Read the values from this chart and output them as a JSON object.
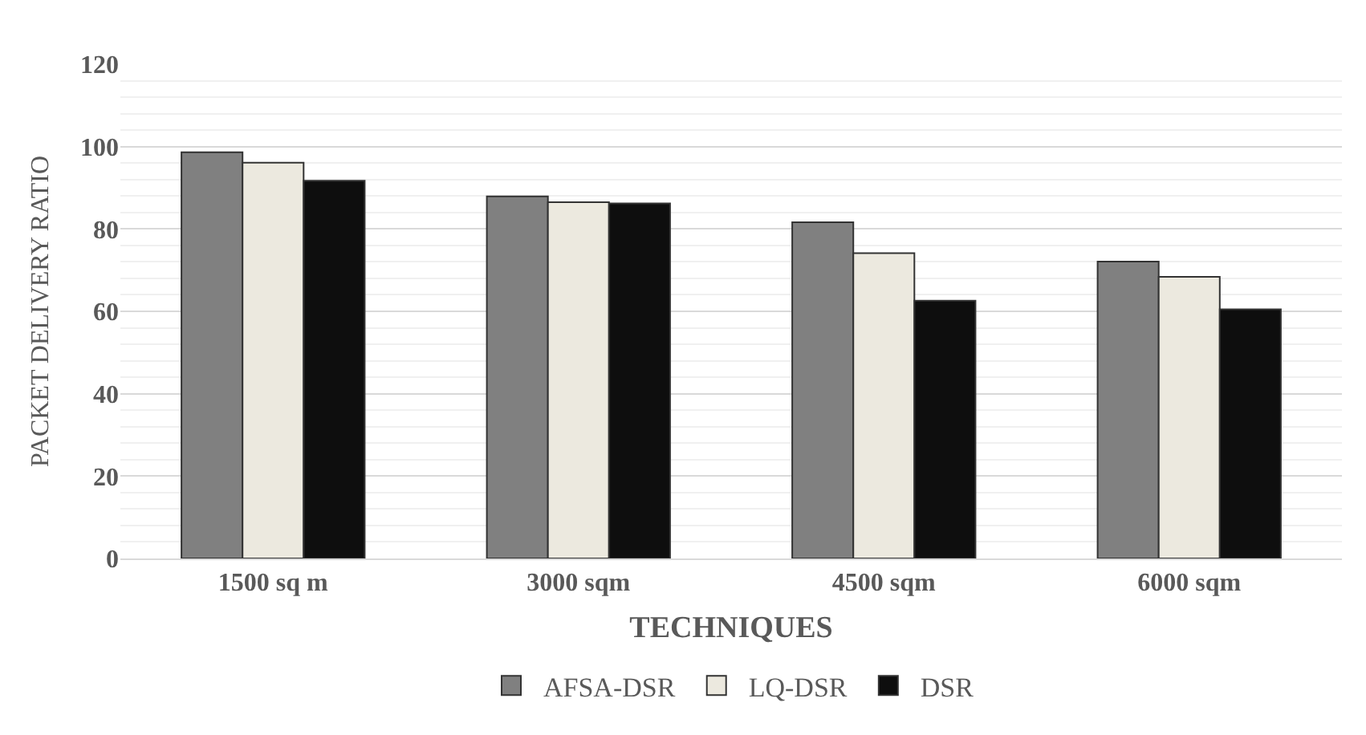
{
  "chart_data": {
    "type": "bar",
    "xlabel": "TECHNIQUES",
    "ylabel": "PACKET DELIVERY RATIO",
    "categories": [
      "1500 sq m",
      "3000 sqm",
      "4500 sqm",
      "6000 sqm"
    ],
    "series": [
      {
        "name": "AFSA-DSR",
        "color": "#808080",
        "values": [
          98.6,
          87.9,
          81.6,
          72.1
        ]
      },
      {
        "name": "LQ-DSR",
        "color": "#ece9df",
        "values": [
          96.1,
          86.5,
          74.1,
          68.4
        ]
      },
      {
        "name": "DSR",
        "color": "#0e0e0e",
        "values": [
          91.7,
          86.2,
          62.6,
          60.5
        ]
      }
    ],
    "ylim": [
      0,
      120
    ],
    "yticks": [
      0,
      20,
      40,
      60,
      80,
      100,
      120
    ],
    "grid": "y",
    "legend": "bottom"
  }
}
